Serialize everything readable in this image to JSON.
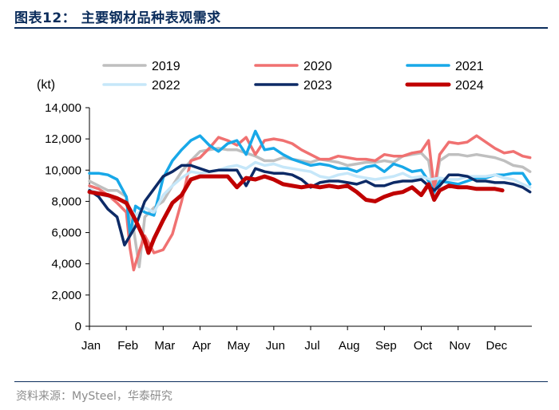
{
  "header": {
    "title": "图表12：  主要钢材品种表观需求"
  },
  "footer": {
    "source": "资料来源：MySteel，华泰研究"
  },
  "chart_data": {
    "type": "line",
    "ylabel": "(kt)",
    "ylim": [
      0,
      14000
    ],
    "yticks": [
      0,
      2000,
      4000,
      6000,
      8000,
      10000,
      12000,
      14000
    ],
    "ytick_labels": [
      "0",
      "2,000",
      "4,000",
      "6,000",
      "8,000",
      "10,000",
      "12,000",
      "14,000"
    ],
    "xlim": [
      0,
      12
    ],
    "xticks": [
      0,
      1,
      2,
      3,
      4,
      5,
      6,
      7,
      8,
      9,
      10,
      11
    ],
    "xtick_labels": [
      "Jan",
      "Feb",
      "Mar",
      "Apr",
      "May",
      "Jun",
      "Jul",
      "Aug",
      "Sep",
      "Oct",
      "Nov",
      "Dec"
    ],
    "legend": {
      "placement": "top",
      "columns": 3
    },
    "grid": false,
    "series": [
      {
        "name": "2019",
        "color": "#bfbfbf",
        "width": 3.5,
        "x": [
          0,
          0.25,
          0.5,
          0.75,
          1.0,
          1.2,
          1.35,
          1.5,
          1.75,
          2.0,
          2.25,
          2.5,
          2.75,
          3.0,
          3.25,
          3.5,
          3.75,
          4.0,
          4.25,
          4.5,
          4.75,
          5.0,
          5.25,
          5.5,
          5.75,
          6.0,
          6.25,
          6.5,
          6.75,
          7.0,
          7.25,
          7.5,
          7.75,
          8.0,
          8.25,
          8.5,
          8.75,
          9.0,
          9.2,
          9.35,
          9.5,
          9.75,
          10.0,
          10.25,
          10.5,
          10.75,
          11.0,
          11.25,
          11.5,
          11.75,
          11.95
        ],
        "values": [
          9300,
          9000,
          8700,
          8700,
          8300,
          6200,
          3800,
          7000,
          7600,
          8000,
          9000,
          9900,
          10600,
          11200,
          11300,
          11400,
          11300,
          11300,
          11100,
          10900,
          10600,
          10600,
          10800,
          10700,
          10600,
          10500,
          10700,
          10600,
          10500,
          10300,
          10400,
          10500,
          10500,
          10600,
          10500,
          10900,
          11000,
          11100,
          10600,
          8500,
          10600,
          11000,
          11000,
          10900,
          11000,
          10900,
          10800,
          10600,
          10300,
          10200,
          9900
        ]
      },
      {
        "name": "2020",
        "color": "#f07171",
        "width": 3.5,
        "x": [
          0,
          0.25,
          0.5,
          0.75,
          1.0,
          1.1,
          1.2,
          1.35,
          1.5,
          1.75,
          2.0,
          2.25,
          2.5,
          2.75,
          3.0,
          3.25,
          3.5,
          3.75,
          4.0,
          4.25,
          4.5,
          4.75,
          5.0,
          5.25,
          5.5,
          5.75,
          6.0,
          6.25,
          6.5,
          6.75,
          7.0,
          7.25,
          7.5,
          7.75,
          8.0,
          8.25,
          8.5,
          8.75,
          9.0,
          9.2,
          9.35,
          9.5,
          9.75,
          10.0,
          10.25,
          10.5,
          10.75,
          11.0,
          11.25,
          11.5,
          11.75,
          11.95
        ],
        "values": [
          9000,
          8800,
          8400,
          7900,
          7300,
          5000,
          3600,
          4800,
          5800,
          4700,
          4900,
          5900,
          8000,
          10600,
          10800,
          11400,
          12100,
          11900,
          11600,
          12100,
          11000,
          11900,
          12000,
          11900,
          11700,
          11300,
          11000,
          10700,
          10700,
          10900,
          10800,
          10700,
          10700,
          10600,
          11000,
          10900,
          10900,
          11100,
          11200,
          11900,
          8800,
          11000,
          11800,
          11700,
          11800,
          12200,
          11800,
          11400,
          11100,
          11200,
          10900,
          10800
        ]
      },
      {
        "name": "2021",
        "color": "#18a8e8",
        "width": 3.5,
        "x": [
          0,
          0.25,
          0.5,
          0.75,
          1.0,
          1.1,
          1.25,
          1.5,
          1.75,
          2.0,
          2.25,
          2.5,
          2.75,
          3.0,
          3.25,
          3.5,
          3.75,
          4.0,
          4.25,
          4.5,
          4.75,
          5.0,
          5.25,
          5.5,
          5.75,
          6.0,
          6.25,
          6.5,
          6.75,
          7.0,
          7.25,
          7.5,
          7.75,
          8.0,
          8.25,
          8.5,
          8.75,
          9.0,
          9.2,
          9.35,
          9.5,
          9.75,
          10.0,
          10.25,
          10.5,
          10.75,
          11.0,
          11.25,
          11.5,
          11.75,
          11.95
        ],
        "values": [
          9800,
          9800,
          9700,
          9400,
          8300,
          5900,
          7700,
          7300,
          7100,
          9500,
          10600,
          11300,
          11900,
          12200,
          11600,
          11200,
          11700,
          11900,
          11000,
          12500,
          11300,
          11400,
          11000,
          10700,
          10500,
          10300,
          10400,
          10300,
          10100,
          10100,
          9900,
          10200,
          10300,
          9900,
          10400,
          10200,
          9900,
          10000,
          9300,
          8600,
          9300,
          9200,
          9100,
          9300,
          9500,
          9500,
          9700,
          9700,
          9800,
          9800,
          9100
        ]
      },
      {
        "name": "2022",
        "color": "#c6e7f9",
        "width": 3.5,
        "x": [
          0,
          0.25,
          0.5,
          0.75,
          1.0,
          1.25,
          1.5,
          1.75,
          2.0,
          2.25,
          2.5,
          2.75,
          3.0,
          3.25,
          3.5,
          3.75,
          4.0,
          4.25,
          4.5,
          4.75,
          5.0,
          5.25,
          5.5,
          5.75,
          6.0,
          6.25,
          6.5,
          6.75,
          7.0,
          7.25,
          7.5,
          7.75,
          8.0,
          8.25,
          8.5,
          8.75,
          9.0,
          9.25,
          9.5,
          9.75,
          10.0,
          10.25,
          10.5,
          10.75,
          11.0,
          11.25,
          11.5,
          11.75,
          11.95
        ],
        "values": [
          8800,
          8500,
          8300,
          8200,
          7800,
          7100,
          7600,
          7300,
          8400,
          9000,
          9500,
          9900,
          9800,
          9900,
          10000,
          10200,
          10300,
          10100,
          10500,
          10300,
          10400,
          10200,
          10100,
          10000,
          9900,
          9600,
          9500,
          9700,
          9800,
          9600,
          9500,
          9400,
          9500,
          9600,
          9800,
          9500,
          9600,
          9400,
          9500,
          9400,
          9400,
          9600,
          9600,
          9600,
          9700,
          9500,
          9400,
          9100,
          8900
        ]
      },
      {
        "name": "2023",
        "color": "#0d2a66",
        "width": 3.5,
        "x": [
          0,
          0.25,
          0.5,
          0.75,
          0.95,
          1.25,
          1.5,
          1.75,
          2.0,
          2.25,
          2.5,
          2.75,
          3.0,
          3.25,
          3.5,
          3.75,
          4.0,
          4.25,
          4.5,
          4.75,
          5.0,
          5.25,
          5.5,
          5.75,
          6.0,
          6.25,
          6.5,
          6.75,
          7.0,
          7.25,
          7.5,
          7.75,
          8.0,
          8.25,
          8.5,
          8.75,
          9.0,
          9.2,
          9.35,
          9.5,
          9.75,
          10.0,
          10.25,
          10.5,
          10.75,
          11.0,
          11.25,
          11.5,
          11.75,
          11.95
        ],
        "values": [
          8700,
          8300,
          7500,
          7000,
          5200,
          6400,
          8000,
          8800,
          9600,
          9900,
          10300,
          10300,
          10100,
          9900,
          10000,
          10000,
          10000,
          9000,
          10100,
          9900,
          9800,
          9800,
          9700,
          9400,
          8900,
          9200,
          9300,
          9300,
          9200,
          9100,
          9300,
          9000,
          9000,
          9200,
          9300,
          9300,
          9400,
          9000,
          8700,
          9000,
          9700,
          9700,
          9600,
          9300,
          9300,
          9200,
          9200,
          9100,
          8900,
          8600
        ]
      },
      {
        "name": "2024",
        "color": "#c00000",
        "width": 5,
        "x": [
          0,
          0.25,
          0.5,
          0.75,
          1.0,
          1.25,
          1.5,
          1.6,
          1.75,
          2.0,
          2.25,
          2.5,
          2.75,
          3.0,
          3.25,
          3.5,
          3.75,
          4.0,
          4.25,
          4.5,
          4.75,
          5.0,
          5.25,
          5.5,
          5.75,
          6.0,
          6.25,
          6.5,
          6.75,
          7.0,
          7.25,
          7.5,
          7.75,
          8.0,
          8.25,
          8.5,
          8.75,
          9.0,
          9.2,
          9.35,
          9.5,
          9.75,
          10.0,
          10.25,
          10.5,
          10.75,
          11.0,
          11.2
        ],
        "values": [
          8600,
          8500,
          8400,
          8200,
          7900,
          6800,
          5500,
          4700,
          5600,
          6800,
          7900,
          8400,
          9400,
          9600,
          9600,
          9600,
          9600,
          8900,
          9500,
          9400,
          9600,
          9400,
          9100,
          9000,
          8900,
          9000,
          8900,
          9000,
          8900,
          9000,
          8600,
          8100,
          8000,
          8300,
          8500,
          8600,
          8900,
          8400,
          9100,
          8100,
          8700,
          9000,
          8900,
          8900,
          8800,
          8800,
          8800,
          8700
        ]
      }
    ]
  }
}
